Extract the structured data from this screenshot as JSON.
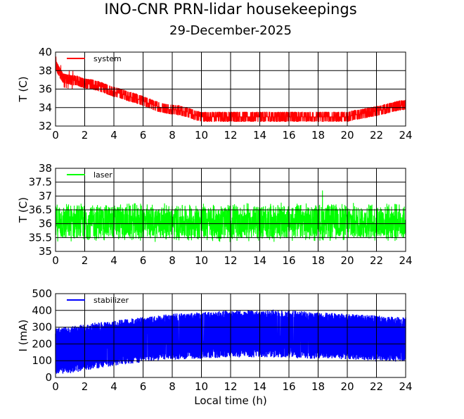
{
  "header": {
    "title": "INO-CNR PRN-lidar housekeepings",
    "date": "29-December-2025"
  },
  "chart_data": [
    {
      "type": "line",
      "ylabel": "T (C)",
      "xlabel": "",
      "xlim": [
        0,
        24
      ],
      "ylim": [
        32,
        40
      ],
      "xticks": [
        0,
        2,
        4,
        6,
        8,
        10,
        12,
        14,
        16,
        18,
        20,
        22,
        24
      ],
      "yticks": [
        32,
        34,
        36,
        38,
        40
      ],
      "grid": true,
      "legend_position": "top-left",
      "series": [
        {
          "name": "system",
          "color": "#ff0000",
          "x": [
            0,
            0.5,
            1,
            1.5,
            2,
            2.5,
            3,
            3.5,
            4,
            4.5,
            5,
            5.5,
            6,
            6.5,
            7,
            7.5,
            8,
            8.5,
            9,
            9.5,
            10,
            11,
            12,
            13,
            14,
            15,
            16,
            17,
            18,
            19,
            20,
            20.5,
            21,
            21.5,
            22,
            22.5,
            23,
            23.5,
            24
          ],
          "center": [
            38.6,
            37.2,
            37.0,
            36.9,
            36.6,
            36.5,
            36.3,
            36.0,
            35.7,
            35.5,
            35.2,
            35.0,
            34.7,
            34.4,
            34.1,
            33.9,
            33.8,
            33.7,
            33.5,
            33.2,
            33.0,
            33.0,
            33.0,
            33.0,
            33.0,
            33.0,
            33.0,
            33.0,
            33.0,
            33.0,
            33.0,
            33.2,
            33.3,
            33.5,
            33.6,
            33.8,
            34.0,
            34.2,
            34.3
          ],
          "spread": [
            0.9,
            0.8,
            0.8,
            0.7,
            0.7,
            0.6,
            0.6,
            0.6,
            0.6,
            0.6,
            0.5,
            0.5,
            0.5,
            0.5,
            0.5,
            0.5,
            0.5,
            0.5,
            0.6,
            0.6,
            0.5,
            0.5,
            0.6,
            0.6,
            0.6,
            0.6,
            0.5,
            0.5,
            0.5,
            0.5,
            0.5,
            0.5,
            0.5,
            0.5,
            0.5,
            0.5,
            0.5,
            0.6,
            0.7
          ]
        }
      ]
    },
    {
      "type": "line",
      "ylabel": "T (C)",
      "xlabel": "",
      "xlim": [
        0,
        24
      ],
      "ylim": [
        35,
        38
      ],
      "xticks": [
        0,
        2,
        4,
        6,
        8,
        10,
        12,
        14,
        16,
        18,
        20,
        22,
        24
      ],
      "yticks": [
        35,
        35.5,
        36,
        36.5,
        37,
        37.5,
        38
      ],
      "grid": true,
      "legend_position": "top-left",
      "series": [
        {
          "name": "laser",
          "color": "#00ff00",
          "x": [
            0,
            2,
            4,
            6,
            8,
            10,
            12,
            14,
            16,
            18,
            20,
            22,
            24
          ],
          "center": [
            36.05,
            36.05,
            36.05,
            36.05,
            36.05,
            36.05,
            36.05,
            36.05,
            36.05,
            36.05,
            36.05,
            36.05,
            36.05
          ],
          "spread": [
            0.72,
            0.72,
            0.72,
            0.72,
            0.72,
            0.72,
            0.72,
            0.72,
            0.72,
            0.72,
            0.72,
            0.72,
            0.72
          ],
          "spike": {
            "x": 18.3,
            "y": 37.2
          }
        }
      ]
    },
    {
      "type": "line",
      "ylabel": "I (mA)",
      "xlabel": "Local time (h)",
      "xlim": [
        0,
        24
      ],
      "ylim": [
        0,
        500
      ],
      "xticks": [
        0,
        2,
        4,
        6,
        8,
        10,
        12,
        14,
        16,
        18,
        20,
        22,
        24
      ],
      "yticks": [
        0,
        100,
        200,
        300,
        400,
        500
      ],
      "grid": true,
      "legend_position": "top-left",
      "series": [
        {
          "name": "stabilizer",
          "color": "#0000ff",
          "x": [
            0,
            1,
            2,
            3,
            4,
            5,
            6,
            7,
            8,
            9,
            10,
            11,
            12,
            13,
            14,
            15,
            16,
            17,
            18,
            19,
            20,
            21,
            22,
            23,
            24
          ],
          "upper": [
            300,
            305,
            320,
            330,
            340,
            350,
            360,
            370,
            380,
            385,
            390,
            395,
            400,
            405,
            405,
            400,
            400,
            395,
            390,
            385,
            380,
            375,
            370,
            365,
            360
          ],
          "lower": [
            15,
            25,
            40,
            55,
            70,
            80,
            90,
            100,
            105,
            110,
            112,
            115,
            118,
            120,
            120,
            118,
            115,
            112,
            110,
            110,
            108,
            105,
            100,
            95,
            90
          ]
        }
      ]
    }
  ]
}
